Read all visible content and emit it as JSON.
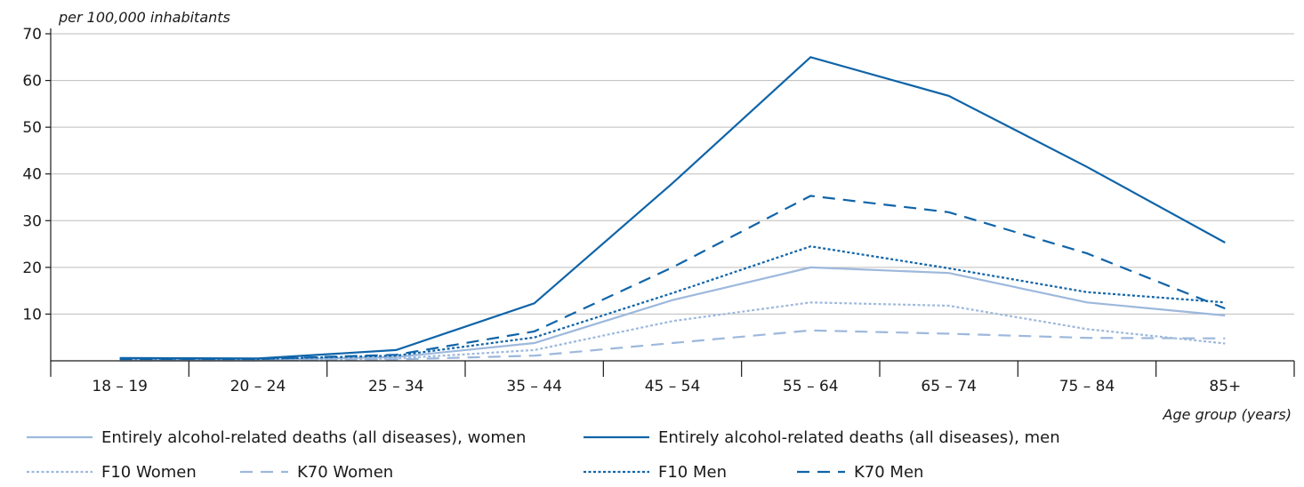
{
  "chart_data": {
    "type": "line",
    "ylabel": "per 100,000 inhabitants",
    "xlabel": "Age group (years)",
    "ylim": [
      0,
      70
    ],
    "yticks": [
      10,
      20,
      30,
      40,
      50,
      60,
      70
    ],
    "grid": true,
    "legend_position": "bottom",
    "categories": [
      "18 – 19",
      "20 – 24",
      "25 – 34",
      "35 – 44",
      "45 – 54",
      "55 – 64",
      "65 – 74",
      "75 – 84",
      "85+"
    ],
    "series": [
      {
        "name": "Entirely alcohol-related deaths (all diseases), women",
        "color": "#9db8dc",
        "style": "solid",
        "values": [
          0.3,
          0.2,
          0.8,
          3.8,
          13,
          20,
          18.8,
          12.5,
          9.7
        ]
      },
      {
        "name": "Entirely alcohol-related deaths (all diseases), men",
        "color": "#0f64a8",
        "style": "solid",
        "values": [
          0.6,
          0.5,
          2.3,
          12.3,
          38,
          65,
          56.7,
          41.5,
          25.3
        ]
      },
      {
        "name": "F10 Women",
        "color": "#9db8dc",
        "style": "dotted",
        "values": [
          0.1,
          0.1,
          0.5,
          2.3,
          8.5,
          12.5,
          11.8,
          6.8,
          3.7
        ]
      },
      {
        "name": "K70 Women",
        "color": "#9db8dc",
        "style": "dashed",
        "values": [
          0.1,
          0.1,
          0.3,
          1.1,
          3.8,
          6.5,
          5.8,
          4.9,
          4.8
        ]
      },
      {
        "name": "F10 Men",
        "color": "#0f64a8",
        "style": "dotted",
        "values": [
          0.5,
          0.4,
          1.1,
          5.0,
          14.5,
          24.5,
          19.8,
          14.7,
          12.5
        ]
      },
      {
        "name": "K70 Men",
        "color": "#0f64a8",
        "style": "dashed",
        "values": [
          0.4,
          0.4,
          1.3,
          6.3,
          20,
          35.3,
          31.8,
          23.0,
          11.2
        ]
      }
    ]
  }
}
